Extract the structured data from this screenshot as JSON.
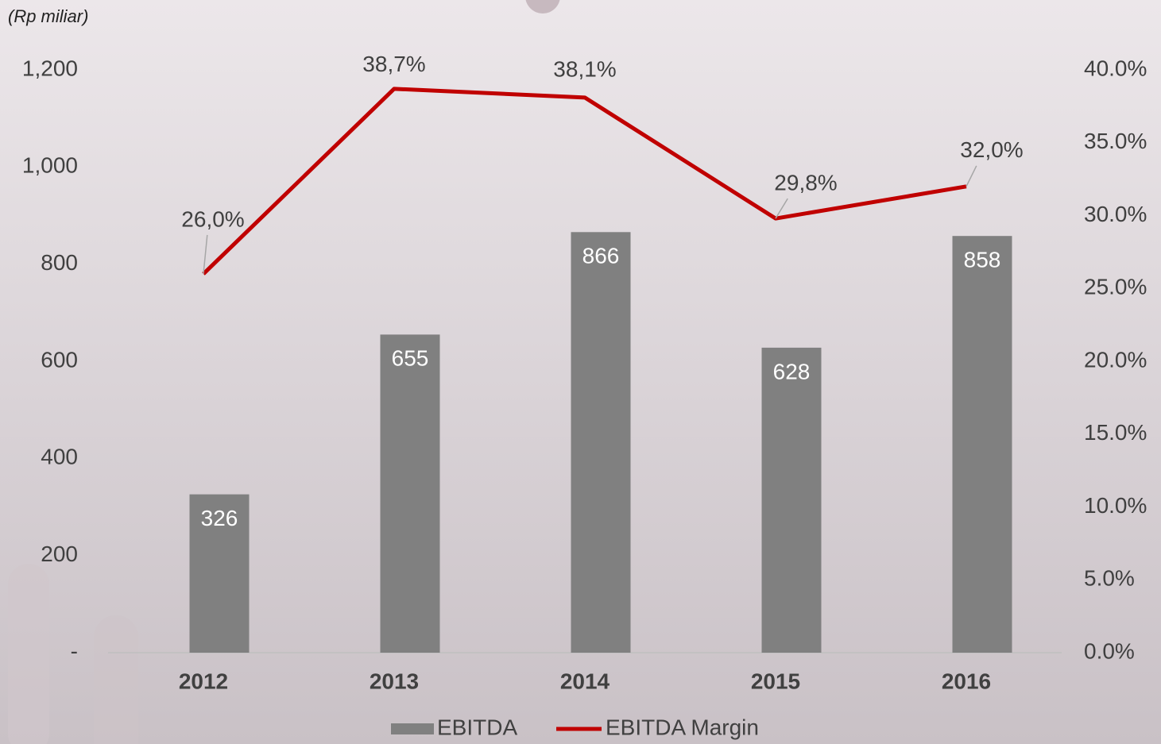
{
  "chart_data": {
    "type": "bar-line",
    "axis_label": "(Rp miliar)",
    "categories": [
      "2012",
      "2013",
      "2014",
      "2015",
      "2016"
    ],
    "series": [
      {
        "name": "EBITDA",
        "type": "bar",
        "color": "#808080",
        "values": [
          326,
          655,
          866,
          628,
          858
        ]
      },
      {
        "name": "EBITDA Margin",
        "type": "line",
        "axis": "y2",
        "color": "#c00000",
        "values": [
          26.0,
          38.7,
          38.1,
          29.8,
          32.0
        ],
        "value_labels": [
          "26,0%",
          "38,7%",
          "38,1%",
          "29,8%",
          "32,0%"
        ]
      }
    ],
    "ylim": [
      0,
      1200
    ],
    "yticks": [
      {
        "value": 0,
        "label": "-"
      },
      {
        "value": 200,
        "label": "200"
      },
      {
        "value": 400,
        "label": "400"
      },
      {
        "value": 600,
        "label": "600"
      },
      {
        "value": 800,
        "label": "800"
      },
      {
        "value": 1000,
        "label": "1,000"
      },
      {
        "value": 1200,
        "label": "1,200"
      }
    ],
    "y2lim": [
      0,
      40
    ],
    "y2ticks": [
      {
        "value": 0,
        "label": "0.0%"
      },
      {
        "value": 5,
        "label": "5.0%"
      },
      {
        "value": 10,
        "label": "10.0%"
      },
      {
        "value": 15,
        "label": "15.0%"
      },
      {
        "value": 20,
        "label": "20.0%"
      },
      {
        "value": 25,
        "label": "25.0%"
      },
      {
        "value": 30,
        "label": "30.0%"
      },
      {
        "value": 35,
        "label": "35.0%"
      },
      {
        "value": 40,
        "label": "40.0%"
      }
    ],
    "legend": "bottom"
  }
}
